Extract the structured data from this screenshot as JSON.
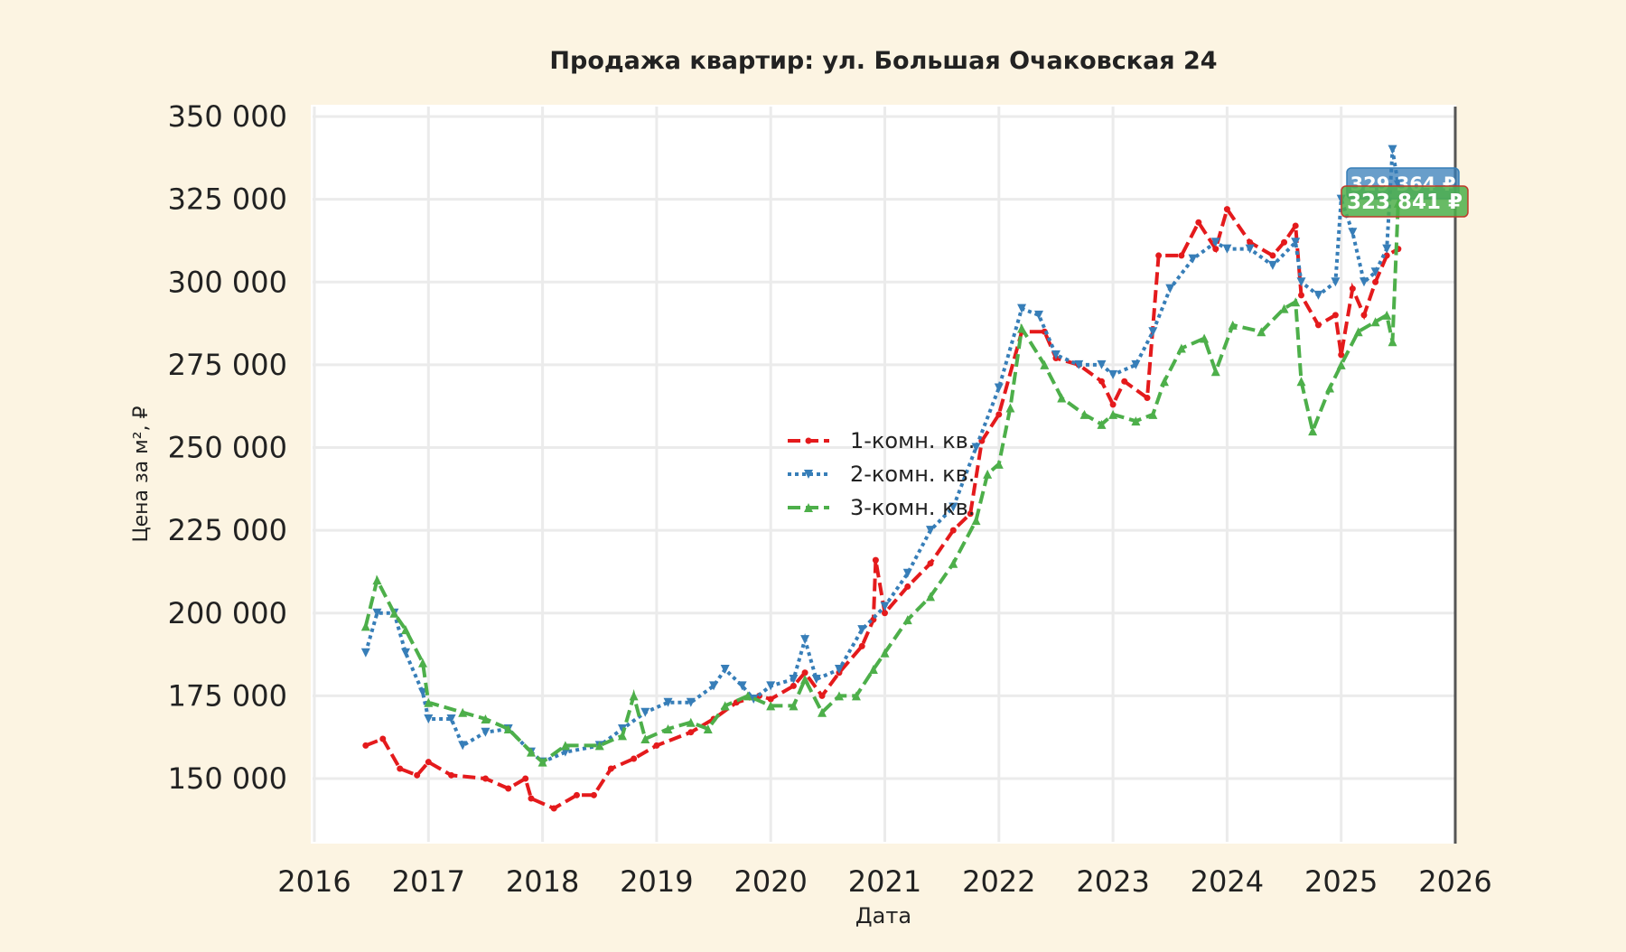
{
  "chart_data": {
    "type": "line",
    "title": "Продажа квартир: ул. Большая Очаковская 24",
    "xlabel": "Дата",
    "ylabel": "Цена за м², ₽",
    "xlim": [
      2016,
      2026
    ],
    "ylim": [
      130000,
      352000
    ],
    "x_ticks": [
      "2016",
      "2017",
      "2018",
      "2019",
      "2020",
      "2021",
      "2022",
      "2023",
      "2024",
      "2025",
      "2026"
    ],
    "y_ticks": [
      150000,
      175000,
      200000,
      225000,
      250000,
      275000,
      300000,
      325000,
      350000
    ],
    "y_tick_labels": [
      "150 000",
      "175 000",
      "200 000",
      "225 000",
      "250 000",
      "275 000",
      "300 000",
      "325 000",
      "350 000"
    ],
    "grid": true,
    "legend_placement": "center",
    "series": [
      {
        "name": "1-комн. кв.",
        "color": "#e41a1c",
        "style": "dashed",
        "marker": "dot",
        "x": [
          2016.45,
          2016.6,
          2016.75,
          2016.9,
          2017.0,
          2017.2,
          2017.5,
          2017.7,
          2017.85,
          2017.9,
          2018.1,
          2018.3,
          2018.45,
          2018.6,
          2018.8,
          2019.0,
          2019.3,
          2019.5,
          2019.7,
          2019.9,
          2020.0,
          2020.2,
          2020.3,
          2020.45,
          2020.6,
          2020.8,
          2020.9,
          2020.92,
          2021.0,
          2021.2,
          2021.4,
          2021.6,
          2021.75,
          2021.85,
          2022.0,
          2022.2,
          2022.4,
          2022.5,
          2022.7,
          2022.9,
          2023.0,
          2023.1,
          2023.3,
          2023.4,
          2023.6,
          2023.75,
          2023.9,
          2024.0,
          2024.2,
          2024.4,
          2024.5,
          2024.6,
          2024.65,
          2024.8,
          2024.95,
          2025.0,
          2025.1,
          2025.2,
          2025.3,
          2025.4,
          2025.5
        ],
        "y": [
          160000,
          162000,
          153000,
          151000,
          155000,
          151000,
          150000,
          147000,
          150000,
          144000,
          141000,
          145000,
          145000,
          153000,
          156000,
          160000,
          164000,
          168000,
          173000,
          175000,
          174000,
          178000,
          182000,
          175000,
          182000,
          190000,
          198000,
          216000,
          200000,
          208000,
          215000,
          225000,
          230000,
          252000,
          260000,
          285000,
          285000,
          277000,
          275000,
          270000,
          263000,
          270000,
          265000,
          308000,
          308000,
          318000,
          310000,
          322000,
          312000,
          308000,
          312000,
          317000,
          296000,
          287000,
          290000,
          278000,
          298000,
          290000,
          300000,
          308000,
          310000
        ]
      },
      {
        "name": "2-комн. кв.",
        "color": "#377eb8",
        "style": "dotted",
        "marker": "triangle-down",
        "x": [
          2016.45,
          2016.55,
          2016.7,
          2016.8,
          2016.95,
          2017.0,
          2017.2,
          2017.3,
          2017.5,
          2017.7,
          2017.9,
          2018.0,
          2018.2,
          2018.5,
          2018.7,
          2018.9,
          2019.1,
          2019.3,
          2019.5,
          2019.6,
          2019.75,
          2019.85,
          2020.0,
          2020.2,
          2020.3,
          2020.4,
          2020.6,
          2020.8,
          2021.0,
          2021.2,
          2021.4,
          2021.6,
          2021.8,
          2022.0,
          2022.2,
          2022.35,
          2022.5,
          2022.7,
          2022.9,
          2023.0,
          2023.2,
          2023.35,
          2023.5,
          2023.7,
          2023.9,
          2024.0,
          2024.2,
          2024.4,
          2024.6,
          2024.65,
          2024.8,
          2024.95,
          2025.0,
          2025.1,
          2025.2,
          2025.3,
          2025.4,
          2025.45,
          2025.5
        ],
        "y": [
          188000,
          200000,
          200000,
          188000,
          176000,
          168000,
          168000,
          160000,
          164000,
          165000,
          158000,
          155000,
          158000,
          160000,
          165000,
          170000,
          173000,
          173000,
          178000,
          183000,
          178000,
          174000,
          178000,
          180000,
          192000,
          180000,
          183000,
          195000,
          202000,
          212000,
          225000,
          232000,
          250000,
          268000,
          292000,
          290000,
          278000,
          275000,
          275000,
          272000,
          275000,
          285000,
          298000,
          307000,
          312000,
          310000,
          310000,
          305000,
          312000,
          300000,
          296000,
          300000,
          325000,
          315000,
          300000,
          303000,
          310000,
          340000,
          329364
        ]
      },
      {
        "name": "3-комн. кв.",
        "color": "#4daf4a",
        "style": "dashed",
        "marker": "triangle-up",
        "x": [
          2016.45,
          2016.55,
          2016.7,
          2016.8,
          2016.95,
          2017.0,
          2017.3,
          2017.5,
          2017.7,
          2017.9,
          2018.0,
          2018.2,
          2018.5,
          2018.7,
          2018.8,
          2018.9,
          2019.1,
          2019.3,
          2019.45,
          2019.6,
          2019.8,
          2020.0,
          2020.2,
          2020.3,
          2020.45,
          2020.6,
          2020.75,
          2020.9,
          2021.0,
          2021.2,
          2021.4,
          2021.6,
          2021.8,
          2021.9,
          2022.0,
          2022.1,
          2022.2,
          2022.4,
          2022.55,
          2022.75,
          2022.9,
          2023.0,
          2023.2,
          2023.35,
          2023.45,
          2023.6,
          2023.8,
          2023.9,
          2024.05,
          2024.3,
          2024.5,
          2024.6,
          2024.65,
          2024.75,
          2024.9,
          2025.0,
          2025.15,
          2025.3,
          2025.4,
          2025.45,
          2025.5
        ],
        "y": [
          196000,
          210000,
          200000,
          195000,
          185000,
          173000,
          170000,
          168000,
          165000,
          158000,
          155000,
          160000,
          160000,
          163000,
          175000,
          162000,
          165000,
          167000,
          165000,
          172000,
          175000,
          172000,
          172000,
          180000,
          170000,
          175000,
          175000,
          183000,
          188000,
          198000,
          205000,
          215000,
          228000,
          242000,
          245000,
          262000,
          286000,
          275000,
          265000,
          260000,
          257000,
          260000,
          258000,
          260000,
          270000,
          280000,
          283000,
          273000,
          287000,
          285000,
          292000,
          294000,
          270000,
          255000,
          268000,
          275000,
          285000,
          288000,
          290000,
          282000,
          323841
        ]
      }
    ],
    "annotations": [
      {
        "text": "329 364 ₽",
        "color": "#377eb8"
      },
      {
        "text": "323 841 ₽",
        "color": "#4daf4a"
      }
    ]
  }
}
